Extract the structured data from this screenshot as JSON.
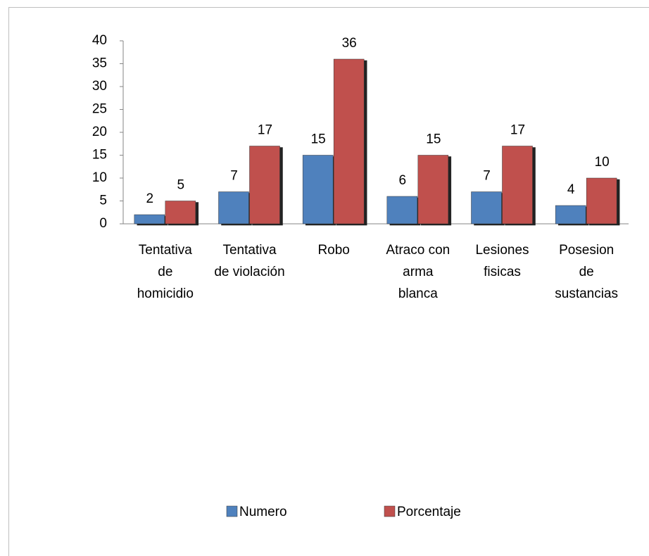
{
  "chart_data": {
    "type": "bar",
    "categories": [
      "Tentativa de homicidio",
      "Tentativa de violación",
      "Robo",
      "Atraco con arma blanca",
      "Lesiones fisicas",
      "Posesion de sustancias"
    ],
    "series": [
      {
        "name": "Numero",
        "color": "#4f81bd",
        "values": [
          2,
          7,
          15,
          6,
          7,
          4
        ]
      },
      {
        "name": "Porcentaje",
        "color": "#c0504d",
        "values": [
          5,
          17,
          36,
          15,
          17,
          10
        ]
      }
    ],
    "ylim": [
      0,
      40
    ],
    "yticks": [
      0,
      5,
      10,
      15,
      20,
      25,
      30,
      35,
      40
    ],
    "legend": "bottom"
  }
}
